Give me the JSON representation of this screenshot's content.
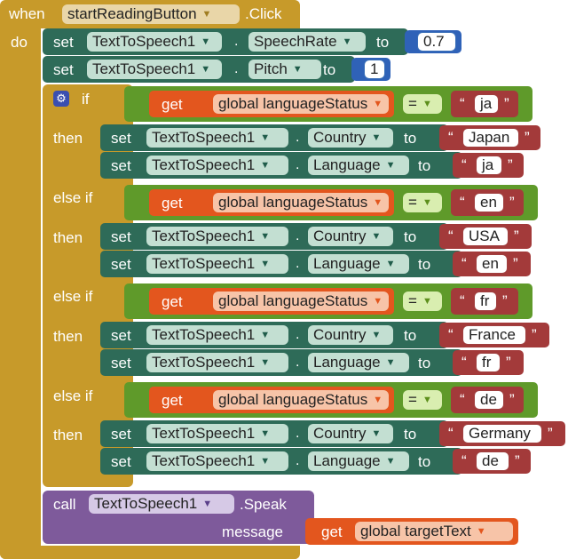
{
  "event": {
    "when_label": "when",
    "component": "startReadingButton",
    "event_name": ".Click",
    "do_label": "do"
  },
  "set_label": "set",
  "to_label": "to",
  "dot": ".",
  "set_speech_rate": {
    "component": "TextToSpeech1",
    "property": "SpeechRate",
    "value": "0.7"
  },
  "set_pitch": {
    "component": "TextToSpeech1",
    "property": "Pitch",
    "value": "1"
  },
  "if_label": "if",
  "else_if_label": "else if",
  "then_label": "then",
  "get_label": "get",
  "variable": "global languageStatus",
  "operator": "=",
  "branches": [
    {
      "match": "ja",
      "country_component": "TextToSpeech1",
      "country_property": "Country",
      "country": "Japan",
      "language_component": "TextToSpeech1",
      "language_property": "Language",
      "language": "ja"
    },
    {
      "match": "en",
      "country_component": "TextToSpeech1",
      "country_property": "Country",
      "country": "USA",
      "language_component": "TextToSpeech1",
      "language_property": "Language",
      "language": "en"
    },
    {
      "match": "fr",
      "country_component": "TextToSpeech1",
      "country_property": "Country",
      "country": "France",
      "language_component": "TextToSpeech1",
      "language_property": "Language",
      "language": "fr"
    },
    {
      "match": "de",
      "country_component": "TextToSpeech1",
      "country_property": "Country",
      "country": "Germany",
      "language_component": "TextToSpeech1",
      "language_property": "Language",
      "language": "de"
    }
  ],
  "call": {
    "call_label": "call",
    "component": "TextToSpeech1",
    "method": ".Speak",
    "message_label": "message",
    "get_label": "get",
    "variable": "global targetText"
  },
  "colors": {
    "control": "#c79a2a",
    "component_setter": "#2e6b58",
    "logic": "#5f9a2a",
    "variable": "#e3561e",
    "text": "#a33a3a",
    "math": "#2f62b8",
    "procedure_call": "#7e5a9b"
  }
}
